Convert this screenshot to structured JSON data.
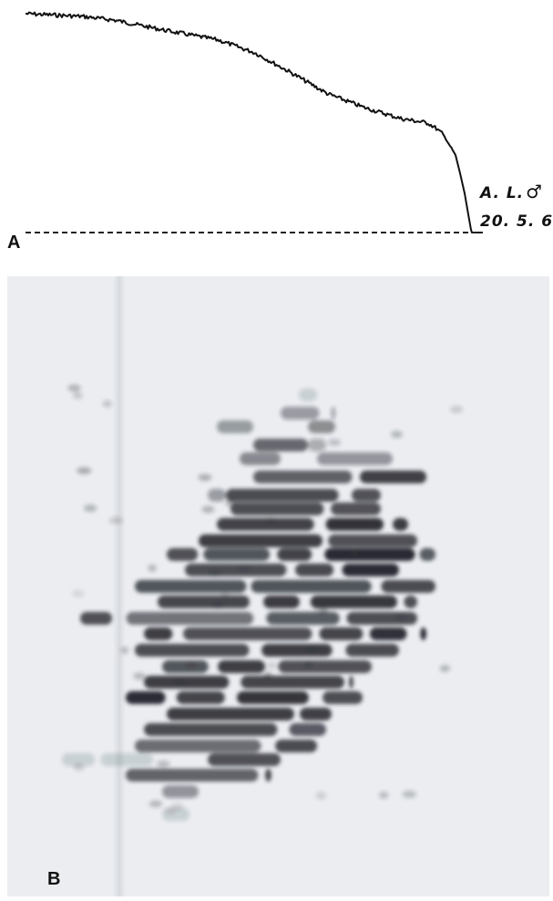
{
  "panel_a": {
    "label": "A",
    "annotation_line1": "A. L.",
    "annotation_symbol": "♂",
    "annotation_line2": "20. 5. 67"
  },
  "panel_b": {
    "label": "B"
  }
}
